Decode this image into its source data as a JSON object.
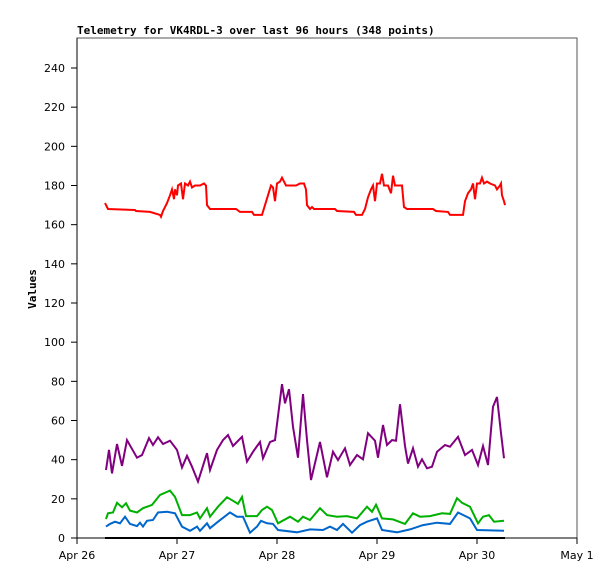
{
  "chart_data": {
    "type": "line",
    "title": "Telemetry for VK4RDL-3 over last 96 hours (348 points)",
    "xlabel": "",
    "ylabel": "Values",
    "x_units": "days since Apr 26",
    "xlim": [
      0,
      5
    ],
    "ylim": [
      0,
      255
    ],
    "x_ticks": [
      {
        "v": 0,
        "label": "Apr 26"
      },
      {
        "v": 1,
        "label": "Apr 27"
      },
      {
        "v": 2,
        "label": "Apr 28"
      },
      {
        "v": 3,
        "label": "Apr 29"
      },
      {
        "v": 4,
        "label": "Apr 30"
      },
      {
        "v": 5,
        "label": "May 1"
      }
    ],
    "y_ticks": [
      0,
      20,
      40,
      60,
      80,
      100,
      120,
      140,
      160,
      180,
      200,
      220,
      240
    ],
    "grid": false,
    "legend": "none",
    "series": [
      {
        "name": "red",
        "color": "#ff0000",
        "points": [
          [
            0.28,
            171
          ],
          [
            0.31,
            168
          ],
          [
            0.58,
            167.5
          ],
          [
            0.59,
            167
          ],
          [
            0.73,
            166.5
          ],
          [
            0.83,
            165
          ],
          [
            0.84,
            164
          ],
          [
            0.86,
            167
          ],
          [
            0.9,
            171
          ],
          [
            0.93,
            175
          ],
          [
            0.95,
            178
          ],
          [
            0.97,
            173
          ],
          [
            0.98,
            178
          ],
          [
            1.0,
            175
          ],
          [
            1.01,
            180
          ],
          [
            1.04,
            181
          ],
          [
            1.06,
            173
          ],
          [
            1.08,
            181
          ],
          [
            1.11,
            180
          ],
          [
            1.13,
            182
          ],
          [
            1.15,
            179
          ],
          [
            1.18,
            180
          ],
          [
            1.23,
            180
          ],
          [
            1.27,
            181
          ],
          [
            1.29,
            180
          ],
          [
            1.3,
            170
          ],
          [
            1.33,
            168
          ],
          [
            1.59,
            168
          ],
          [
            1.63,
            166.5
          ],
          [
            1.75,
            166.5
          ],
          [
            1.77,
            165
          ],
          [
            1.85,
            165
          ],
          [
            1.88,
            170
          ],
          [
            1.91,
            175
          ],
          [
            1.94,
            180
          ],
          [
            1.96,
            179
          ],
          [
            1.98,
            172
          ],
          [
            2.0,
            181
          ],
          [
            2.03,
            182
          ],
          [
            2.05,
            184
          ],
          [
            2.07,
            182
          ],
          [
            2.09,
            180
          ],
          [
            2.13,
            180
          ],
          [
            2.19,
            180
          ],
          [
            2.23,
            181
          ],
          [
            2.27,
            181
          ],
          [
            2.29,
            178
          ],
          [
            2.3,
            170
          ],
          [
            2.33,
            168
          ],
          [
            2.35,
            169
          ],
          [
            2.37,
            168
          ],
          [
            2.58,
            168
          ],
          [
            2.6,
            167
          ],
          [
            2.77,
            166.5
          ],
          [
            2.79,
            165
          ],
          [
            2.85,
            165
          ],
          [
            2.88,
            168
          ],
          [
            2.91,
            174
          ],
          [
            2.94,
            178
          ],
          [
            2.96,
            180
          ],
          [
            2.98,
            172
          ],
          [
            3.0,
            181
          ],
          [
            3.03,
            181
          ],
          [
            3.05,
            186
          ],
          [
            3.07,
            180
          ],
          [
            3.11,
            180
          ],
          [
            3.14,
            176
          ],
          [
            3.16,
            185
          ],
          [
            3.18,
            180
          ],
          [
            3.23,
            180
          ],
          [
            3.25,
            180
          ],
          [
            3.27,
            169
          ],
          [
            3.3,
            168
          ],
          [
            3.56,
            168
          ],
          [
            3.59,
            167
          ],
          [
            3.71,
            166.5
          ],
          [
            3.73,
            165
          ],
          [
            3.86,
            165
          ],
          [
            3.88,
            172
          ],
          [
            3.91,
            176
          ],
          [
            3.94,
            178
          ],
          [
            3.96,
            181
          ],
          [
            3.98,
            173
          ],
          [
            4.0,
            181
          ],
          [
            4.03,
            181
          ],
          [
            4.05,
            184
          ],
          [
            4.07,
            181
          ],
          [
            4.1,
            182
          ],
          [
            4.13,
            181
          ],
          [
            4.18,
            180
          ],
          [
            4.2,
            178
          ],
          [
            4.23,
            180
          ],
          [
            4.24,
            181
          ],
          [
            4.25,
            175
          ],
          [
            4.27,
            172
          ],
          [
            4.28,
            170
          ]
        ]
      },
      {
        "name": "purple",
        "color": "#800080",
        "points": [
          [
            0.29,
            34.7
          ],
          [
            0.32,
            45
          ],
          [
            0.35,
            33
          ],
          [
            0.4,
            48
          ],
          [
            0.45,
            36.8
          ],
          [
            0.5,
            50
          ],
          [
            0.6,
            41
          ],
          [
            0.65,
            42.4
          ],
          [
            0.72,
            51
          ],
          [
            0.76,
            47.5
          ],
          [
            0.81,
            51.4
          ],
          [
            0.86,
            48
          ],
          [
            0.93,
            49.7
          ],
          [
            1.0,
            45
          ],
          [
            1.05,
            36
          ],
          [
            1.1,
            42
          ],
          [
            1.15,
            36.4
          ],
          [
            1.21,
            28.8
          ],
          [
            1.3,
            43.3
          ],
          [
            1.33,
            34.7
          ],
          [
            1.4,
            45
          ],
          [
            1.46,
            50
          ],
          [
            1.51,
            52.6
          ],
          [
            1.56,
            47
          ],
          [
            1.65,
            51.7
          ],
          [
            1.7,
            39
          ],
          [
            1.76,
            44
          ],
          [
            1.83,
            49
          ],
          [
            1.86,
            40.7
          ],
          [
            1.93,
            49
          ],
          [
            1.98,
            50
          ],
          [
            2.05,
            78.6
          ],
          [
            2.08,
            68.8
          ],
          [
            2.12,
            76
          ],
          [
            2.16,
            56.8
          ],
          [
            2.21,
            41
          ],
          [
            2.26,
            73.5
          ],
          [
            2.3,
            50
          ],
          [
            2.34,
            29.6
          ],
          [
            2.43,
            49
          ],
          [
            2.5,
            31
          ],
          [
            2.56,
            44
          ],
          [
            2.61,
            39.8
          ],
          [
            2.68,
            45.8
          ],
          [
            2.73,
            37.3
          ],
          [
            2.8,
            42.4
          ],
          [
            2.86,
            40.2
          ],
          [
            2.91,
            53.5
          ],
          [
            2.98,
            49.7
          ],
          [
            3.01,
            41
          ],
          [
            3.06,
            57.7
          ],
          [
            3.1,
            47.5
          ],
          [
            3.15,
            50
          ],
          [
            3.19,
            49.7
          ],
          [
            3.23,
            68.3
          ],
          [
            3.28,
            47
          ],
          [
            3.31,
            38
          ],
          [
            3.36,
            45.8
          ],
          [
            3.41,
            36.4
          ],
          [
            3.45,
            40.2
          ],
          [
            3.5,
            35.6
          ],
          [
            3.55,
            36.4
          ],
          [
            3.6,
            44
          ],
          [
            3.68,
            47.5
          ],
          [
            3.73,
            46.6
          ],
          [
            3.81,
            51.7
          ],
          [
            3.88,
            42.4
          ],
          [
            3.95,
            45
          ],
          [
            4.01,
            37.3
          ],
          [
            4.06,
            47
          ],
          [
            4.11,
            37.3
          ],
          [
            4.16,
            67
          ],
          [
            4.2,
            72
          ],
          [
            4.24,
            53.5
          ],
          [
            4.27,
            40.7
          ]
        ]
      },
      {
        "name": "green",
        "color": "#00b000",
        "points": [
          [
            0.29,
            9.7
          ],
          [
            0.31,
            12.6
          ],
          [
            0.36,
            13
          ],
          [
            0.4,
            18
          ],
          [
            0.45,
            15.7
          ],
          [
            0.49,
            17.7
          ],
          [
            0.53,
            14
          ],
          [
            0.6,
            13
          ],
          [
            0.66,
            15.2
          ],
          [
            0.75,
            16.9
          ],
          [
            0.83,
            22
          ],
          [
            0.93,
            24.2
          ],
          [
            0.98,
            21
          ],
          [
            1.05,
            11.7
          ],
          [
            1.13,
            11.7
          ],
          [
            1.2,
            13
          ],
          [
            1.23,
            10
          ],
          [
            1.3,
            15.2
          ],
          [
            1.33,
            10.9
          ],
          [
            1.41,
            16
          ],
          [
            1.5,
            20.8
          ],
          [
            1.56,
            19
          ],
          [
            1.61,
            17.4
          ],
          [
            1.65,
            21
          ],
          [
            1.69,
            11.2
          ],
          [
            1.8,
            11.2
          ],
          [
            1.85,
            14.3
          ],
          [
            1.9,
            16
          ],
          [
            1.95,
            14.3
          ],
          [
            2.01,
            7.5
          ],
          [
            2.13,
            10.9
          ],
          [
            2.21,
            8.3
          ],
          [
            2.26,
            10.9
          ],
          [
            2.33,
            9.2
          ],
          [
            2.43,
            15.2
          ],
          [
            2.5,
            11.7
          ],
          [
            2.6,
            10.9
          ],
          [
            2.7,
            11.2
          ],
          [
            2.8,
            10
          ],
          [
            2.9,
            16
          ],
          [
            2.95,
            13.4
          ],
          [
            2.99,
            17
          ],
          [
            3.05,
            10
          ],
          [
            3.16,
            9.5
          ],
          [
            3.28,
            7.2
          ],
          [
            3.36,
            12.6
          ],
          [
            3.43,
            10.9
          ],
          [
            3.53,
            11.2
          ],
          [
            3.65,
            12.6
          ],
          [
            3.73,
            12.3
          ],
          [
            3.8,
            20.3
          ],
          [
            3.85,
            18
          ],
          [
            3.93,
            16
          ],
          [
            4.01,
            7.5
          ],
          [
            4.06,
            10.9
          ],
          [
            4.12,
            11.7
          ],
          [
            4.17,
            8.3
          ],
          [
            4.27,
            8.8
          ]
        ]
      },
      {
        "name": "blue",
        "color": "#0066cc",
        "points": [
          [
            0.29,
            5.8
          ],
          [
            0.33,
            7.2
          ],
          [
            0.38,
            8.3
          ],
          [
            0.43,
            7.5
          ],
          [
            0.48,
            10.9
          ],
          [
            0.53,
            7.2
          ],
          [
            0.6,
            6.1
          ],
          [
            0.63,
            7.8
          ],
          [
            0.66,
            5.8
          ],
          [
            0.7,
            8.8
          ],
          [
            0.76,
            9.2
          ],
          [
            0.81,
            13
          ],
          [
            0.9,
            13.4
          ],
          [
            0.98,
            12.6
          ],
          [
            1.05,
            5.8
          ],
          [
            1.13,
            3.7
          ],
          [
            1.2,
            5.8
          ],
          [
            1.23,
            3.7
          ],
          [
            1.3,
            7.5
          ],
          [
            1.33,
            5
          ],
          [
            1.41,
            8.3
          ],
          [
            1.53,
            13
          ],
          [
            1.6,
            10.9
          ],
          [
            1.66,
            10.9
          ],
          [
            1.73,
            2.7
          ],
          [
            1.8,
            5.8
          ],
          [
            1.84,
            8.8
          ],
          [
            1.9,
            7.5
          ],
          [
            1.96,
            7.2
          ],
          [
            2.01,
            4.1
          ],
          [
            2.2,
            2.9
          ],
          [
            2.33,
            4.4
          ],
          [
            2.46,
            4.1
          ],
          [
            2.53,
            5.8
          ],
          [
            2.6,
            4.1
          ],
          [
            2.66,
            7.2
          ],
          [
            2.75,
            2.7
          ],
          [
            2.83,
            6.6
          ],
          [
            2.9,
            8.3
          ],
          [
            3.0,
            10
          ],
          [
            3.05,
            4.1
          ],
          [
            3.2,
            2.9
          ],
          [
            3.33,
            4.4
          ],
          [
            3.46,
            6.6
          ],
          [
            3.6,
            7.8
          ],
          [
            3.73,
            7.2
          ],
          [
            3.81,
            13
          ],
          [
            3.93,
            10
          ],
          [
            4.0,
            4.1
          ],
          [
            4.27,
            3.7
          ]
        ]
      },
      {
        "name": "black",
        "color": "#000000",
        "points": [
          [
            0.28,
            0
          ],
          [
            4.28,
            0
          ]
        ]
      }
    ]
  }
}
